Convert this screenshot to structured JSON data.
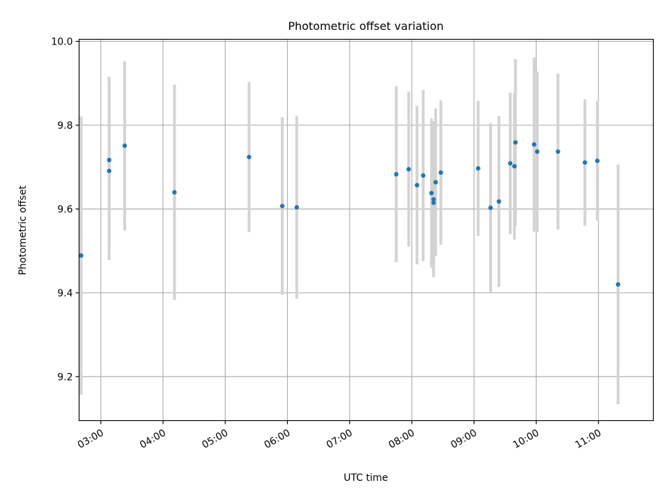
{
  "chart_data": {
    "type": "scatter",
    "title": "Photometric offset variation",
    "xlabel": "UTC time",
    "ylabel": "Photometric offset",
    "x_unit": "UTC time (HH:MM)",
    "xlim": [
      "02:39",
      "11:53"
    ],
    "ylim": [
      9.095,
      10.005
    ],
    "x_ticks": [
      "03:00",
      "04:00",
      "05:00",
      "06:00",
      "07:00",
      "08:00",
      "09:00",
      "10:00",
      "11:00"
    ],
    "y_ticks": [
      9.2,
      9.4,
      9.6,
      9.8,
      10.0
    ],
    "y_tick_labels": [
      "9.2",
      "9.4",
      "9.6",
      "9.8",
      "10.0"
    ],
    "grid": true,
    "marker_color": "#1f77b4",
    "errorbar_color": "#d3d3d3",
    "series": [
      {
        "points": [
          {
            "x": "02:41",
            "y": 9.489,
            "yerr": 0.332
          },
          {
            "x": "03:08",
            "y": 9.717,
            "yerr": 0.199
          },
          {
            "x": "03:08",
            "y": 9.691,
            "yerr": 0.213
          },
          {
            "x": "03:23",
            "y": 9.751,
            "yerr": 0.202
          },
          {
            "x": "04:11",
            "y": 9.64,
            "yerr": 0.257
          },
          {
            "x": "05:23",
            "y": 9.724,
            "yerr": 0.179
          },
          {
            "x": "05:55",
            "y": 9.607,
            "yerr": 0.212
          },
          {
            "x": "06:09",
            "y": 9.604,
            "yerr": 0.218
          },
          {
            "x": "07:45",
            "y": 9.683,
            "yerr": 0.21
          },
          {
            "x": "07:57",
            "y": 9.695,
            "yerr": 0.185
          },
          {
            "x": "08:05",
            "y": 9.657,
            "yerr": 0.189
          },
          {
            "x": "08:11",
            "y": 9.68,
            "yerr": 0.204
          },
          {
            "x": "08:19",
            "y": 9.638,
            "yerr": 0.178
          },
          {
            "x": "08:21",
            "y": 9.623,
            "yerr": 0.186
          },
          {
            "x": "08:21",
            "y": 9.615,
            "yerr": 0.177
          },
          {
            "x": "08:23",
            "y": 9.664,
            "yerr": 0.176
          },
          {
            "x": "08:28",
            "y": 9.687,
            "yerr": 0.172
          },
          {
            "x": "09:04",
            "y": 9.697,
            "yerr": 0.161
          },
          {
            "x": "09:16",
            "y": 9.603,
            "yerr": 0.202
          },
          {
            "x": "09:24",
            "y": 9.618,
            "yerr": 0.204
          },
          {
            "x": "09:35",
            "y": 9.709,
            "yerr": 0.169
          },
          {
            "x": "09:39",
            "y": 9.702,
            "yerr": 0.175
          },
          {
            "x": "09:40",
            "y": 9.759,
            "yerr": 0.199
          },
          {
            "x": "09:58",
            "y": 9.754,
            "yerr": 0.208
          },
          {
            "x": "10:01",
            "y": 9.737,
            "yerr": 0.191
          },
          {
            "x": "10:21",
            "y": 9.737,
            "yerr": 0.186
          },
          {
            "x": "10:47",
            "y": 9.711,
            "yerr": 0.151
          },
          {
            "x": "10:59",
            "y": 9.715,
            "yerr": 0.143
          },
          {
            "x": "11:19",
            "y": 9.42,
            "yerr": 0.286
          }
        ]
      }
    ]
  }
}
